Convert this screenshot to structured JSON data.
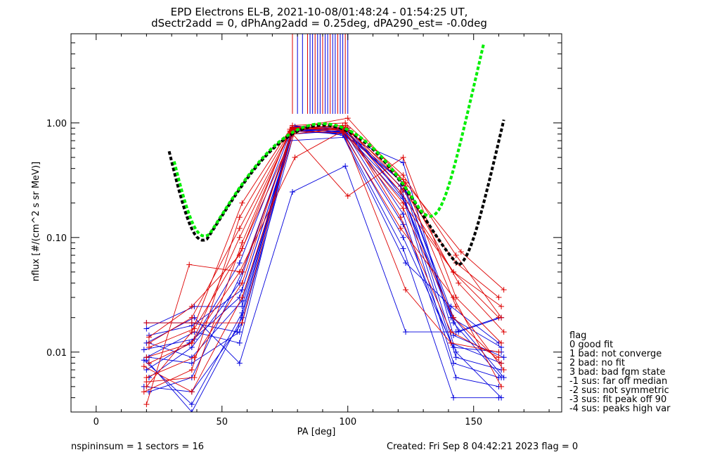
{
  "chart_data": {
    "type": "line",
    "title_line1": "EPD Electrons EL-B, 2021-10-08/01:48:24 - 01:54:25 UT,",
    "title_line2": "dSectr2add = 0, dPhAng2add = 0.25deg, dPA290_est=  -0.0deg",
    "xlabel": "PA [deg]",
    "ylabel": "nflux [#/(cm^2 s sr MeV)]",
    "xlim": [
      -10,
      185
    ],
    "ylim": [
      0.003,
      6.0
    ],
    "yscale": "log",
    "x_ticks": [
      0,
      50,
      100,
      150
    ],
    "x_tick_labels": [
      "0",
      "50",
      "100",
      "150"
    ],
    "y_ticks": [
      0.01,
      0.1,
      1.0
    ],
    "y_tick_labels": [
      "0.01",
      "0.10",
      "1.00"
    ],
    "colors": {
      "red": "#dd0000",
      "blue": "#0000dd",
      "green": "#00ee00",
      "black": "#000000"
    },
    "series": [
      {
        "values": [
          [
            20,
            0.0085
          ],
          [
            38,
            0.003
          ],
          [
            58,
            0.02
          ],
          [
            78,
            0.92
          ],
          [
            98,
            0.88
          ],
          [
            122,
            0.3
          ],
          [
            142,
            0.018
          ],
          [
            161,
            0.006
          ]
        ]
      },
      {
        "values": [
          [
            20,
            0.012
          ],
          [
            39,
            0.02
          ],
          [
            57,
            0.008
          ],
          [
            78,
            0.25
          ],
          [
            99,
            0.42
          ],
          [
            123,
            0.015
          ],
          [
            143,
            0.015
          ],
          [
            160,
            0.02
          ]
        ]
      },
      {
        "values": [
          [
            21,
            0.009
          ],
          [
            38,
            0.008
          ],
          [
            57,
            0.015
          ],
          [
            78,
            0.85
          ],
          [
            98,
            0.8
          ],
          [
            122,
            0.08
          ],
          [
            142,
            0.004
          ],
          [
            160,
            0.004
          ]
        ]
      },
      {
        "values": [
          [
            21,
            0.012
          ],
          [
            38,
            0.009
          ],
          [
            58,
            0.028
          ],
          [
            79,
            0.93
          ],
          [
            98,
            0.9
          ],
          [
            122,
            0.13
          ],
          [
            141,
            0.012
          ],
          [
            161,
            0.008
          ]
        ]
      },
      {
        "values": [
          [
            20,
            0.009
          ],
          [
            39,
            0.015
          ],
          [
            57,
            0.012
          ],
          [
            78,
            0.88
          ],
          [
            99,
            0.84
          ],
          [
            121,
            0.28
          ],
          [
            143,
            0.009
          ],
          [
            161,
            0.007
          ]
        ]
      },
      {
        "values": [
          [
            19,
            0.0085
          ],
          [
            38,
            0.0035
          ],
          [
            58,
            0.022
          ],
          [
            78,
            0.9
          ],
          [
            98,
            0.78
          ],
          [
            123,
            0.06
          ],
          [
            141,
            0.025
          ],
          [
            160,
            0.012
          ]
        ]
      },
      {
        "values": [
          [
            20,
            0.007
          ],
          [
            37,
            0.012
          ],
          [
            57,
            0.03
          ],
          [
            77,
            0.7
          ],
          [
            99,
            0.75
          ],
          [
            122,
            0.45
          ],
          [
            142,
            0.014
          ],
          [
            162,
            0.009
          ]
        ]
      },
      {
        "values": [
          [
            21,
            0.014
          ],
          [
            38,
            0.017
          ],
          [
            58,
            0.035
          ],
          [
            78,
            0.8
          ],
          [
            100,
            0.86
          ],
          [
            122,
            0.16
          ],
          [
            143,
            0.006
          ],
          [
            160,
            0.005
          ]
        ]
      },
      {
        "values": [
          [
            20,
            0.018
          ],
          [
            38,
            0.018
          ],
          [
            56,
            0.015
          ],
          [
            78,
            0.95
          ],
          [
            98,
            0.85
          ],
          [
            122,
            0.1
          ],
          [
            142,
            0.011
          ],
          [
            161,
            0.01
          ]
        ]
      },
      {
        "values": [
          [
            19,
            0.005
          ],
          [
            38,
            0.0045
          ],
          [
            58,
            0.018
          ],
          [
            79,
            0.87
          ],
          [
            99,
            0.8
          ],
          [
            121,
            0.25
          ],
          [
            141,
            0.02
          ],
          [
            161,
            0.011
          ]
        ]
      },
      {
        "values": [
          [
            20,
            0.016
          ],
          [
            39,
            0.025
          ],
          [
            58,
            0.025
          ],
          [
            78,
            0.9
          ],
          [
            98,
            0.83
          ],
          [
            123,
            0.2
          ],
          [
            144,
            0.015
          ],
          [
            161,
            0.02
          ]
        ]
      },
      {
        "values": [
          [
            21,
            0.006
          ],
          [
            38,
            0.011
          ],
          [
            57,
            0.04
          ],
          [
            78,
            0.88
          ],
          [
            100,
            0.9
          ],
          [
            122,
            0.22
          ],
          [
            142,
            0.008
          ],
          [
            160,
            0.006
          ]
        ]
      },
      {
        "values": [
          [
            21,
            0.0045
          ],
          [
            38,
            0.006
          ],
          [
            58,
            0.05
          ],
          [
            78,
            0.85
          ],
          [
            99,
            0.88
          ],
          [
            123,
            0.25
          ],
          [
            143,
            0.01
          ],
          [
            161,
            0.004
          ]
        ]
      },
      {
        "values": [
          [
            19,
            0.0105
          ],
          [
            39,
            0.013
          ],
          [
            57,
            0.06
          ],
          [
            78,
            0.92
          ],
          [
            98,
            0.82
          ],
          [
            122,
            0.3
          ],
          [
            142,
            0.02
          ],
          [
            162,
            0.006
          ]
        ]
      }
    ],
    "series_red": [
      {
        "values": [
          [
            20,
            0.018
          ],
          [
            38,
            0.018
          ],
          [
            58,
            0.018
          ],
          [
            78,
            0.9
          ],
          [
            100,
            1.1
          ],
          [
            123,
            0.3
          ],
          [
            145,
            0.075
          ],
          [
            162,
            0.035
          ]
        ]
      },
      {
        "values": [
          [
            20,
            0.005
          ],
          [
            38,
            0.015
          ],
          [
            58,
            0.2
          ],
          [
            78,
            0.95
          ],
          [
            99,
            1.0
          ],
          [
            122,
            0.35
          ],
          [
            143,
            0.07
          ],
          [
            161,
            0.02
          ]
        ]
      },
      {
        "values": [
          [
            21,
            0.012
          ],
          [
            38,
            0.02
          ],
          [
            57,
            0.12
          ],
          [
            78,
            0.9
          ],
          [
            98,
            0.95
          ],
          [
            121,
            0.25
          ],
          [
            142,
            0.05
          ],
          [
            160,
            0.02
          ]
        ]
      },
      {
        "values": [
          [
            20,
            0.0055
          ],
          [
            39,
            0.006
          ],
          [
            58,
            0.09
          ],
          [
            77,
            0.85
          ],
          [
            100,
            0.23
          ],
          [
            122,
            0.5
          ],
          [
            143,
            0.03
          ],
          [
            161,
            0.012
          ]
        ]
      },
      {
        "values": [
          [
            21,
            0.008
          ],
          [
            38,
            0.012
          ],
          [
            57,
            0.05
          ],
          [
            79,
            0.5
          ],
          [
            98,
            0.85
          ],
          [
            123,
            0.035
          ],
          [
            141,
            0.012
          ],
          [
            160,
            0.01
          ]
        ]
      },
      {
        "values": [
          [
            20,
            0.0035
          ],
          [
            37,
            0.058
          ],
          [
            58,
            0.05
          ],
          [
            78,
            0.8
          ],
          [
            99,
            0.9
          ],
          [
            122,
            0.32
          ],
          [
            143,
            0.025
          ],
          [
            162,
            0.007
          ]
        ]
      },
      {
        "values": [
          [
            19,
            0.0045
          ],
          [
            38,
            0.007
          ],
          [
            57,
            0.15
          ],
          [
            78,
            0.92
          ],
          [
            98,
            0.88
          ],
          [
            122,
            0.2
          ],
          [
            142,
            0.05
          ],
          [
            161,
            0.025
          ]
        ]
      },
      {
        "values": [
          [
            21,
            0.011
          ],
          [
            39,
            0.016
          ],
          [
            58,
            0.08
          ],
          [
            79,
            0.87
          ],
          [
            99,
            0.92
          ],
          [
            121,
            0.15
          ],
          [
            141,
            0.015
          ],
          [
            160,
            0.009
          ]
        ]
      },
      {
        "values": [
          [
            20,
            0.009
          ],
          [
            38,
            0.012
          ],
          [
            57,
            0.1
          ],
          [
            78,
            0.9
          ],
          [
            100,
            0.9
          ],
          [
            123,
            0.28
          ],
          [
            144,
            0.04
          ],
          [
            162,
            0.015
          ]
        ]
      },
      {
        "values": [
          [
            20,
            0.006
          ],
          [
            39,
            0.009
          ],
          [
            58,
            0.04
          ],
          [
            78,
            0.9
          ],
          [
            98,
            0.86
          ],
          [
            122,
            0.18
          ],
          [
            142,
            0.02
          ],
          [
            161,
            0.008
          ]
        ]
      },
      {
        "values": [
          [
            21,
            0.0135
          ],
          [
            38,
            0.025
          ],
          [
            57,
            0.07
          ],
          [
            77,
            0.88
          ],
          [
            99,
            0.95
          ],
          [
            122,
            0.26
          ],
          [
            143,
            0.06
          ],
          [
            160,
            0.03
          ]
        ]
      },
      {
        "values": [
          [
            19,
            0.0075
          ],
          [
            38,
            0.0045
          ],
          [
            58,
            0.03
          ],
          [
            79,
            0.85
          ],
          [
            98,
            0.82
          ],
          [
            121,
            0.12
          ],
          [
            142,
            0.03
          ],
          [
            161,
            0.005
          ]
        ]
      }
    ],
    "fit_green": {
      "x_range": [
        31,
        154
      ],
      "center": 90,
      "amplitude": 0.95,
      "min_at": 44,
      "description_color": "green"
    },
    "fit_black": {
      "x_range": [
        29,
        162
      ],
      "center": 90,
      "amplitude": 0.92,
      "description_color": "black"
    },
    "spike_marks_x": [
      78,
      80,
      82,
      84,
      85,
      86,
      87,
      88,
      89,
      90,
      91,
      92,
      93,
      94,
      95,
      96,
      97,
      98,
      99,
      100
    ],
    "legend_title": "flag",
    "legend_items": [
      " 0 good fit",
      " 1 bad: not converge",
      " 2 bad: no fit",
      " 3 bad: bad fgm state",
      "-1 sus: far off median",
      "-2 sus: not symmetric",
      "-3 sus: fit peak off 90",
      "-4 sus: peaks high var"
    ],
    "footer_left": "nspininsum =  1  sectors = 16",
    "footer_right": "Created: Fri Sep  8 04:42:21 2023   flag = 0"
  }
}
